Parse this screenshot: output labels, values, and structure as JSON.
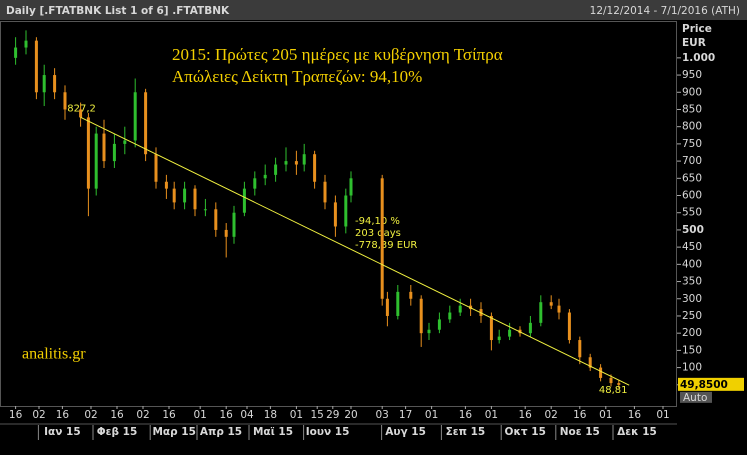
{
  "header": {
    "left": "Daily [.FTATBNK List 1 of 6] .FTATBNK",
    "right": "12/12/2014 - 7/1/2016 (ATH)"
  },
  "chart_data": {
    "type": "candlestick",
    "title": "2015: Πρώτες 205 ημέρες με κυβέρνηση Τσίπρα",
    "subtitle": "Απώλειες Δείκτη Τραπεζών: 94,10%",
    "watermark": "analitis.gr",
    "y_axis_title": "Price",
    "y_axis_unit": "EUR",
    "x": [
      4,
      8,
      12,
      15,
      19,
      23,
      29,
      32,
      35,
      38,
      42,
      46,
      50,
      54,
      58,
      62,
      65,
      69,
      73,
      77,
      81,
      85,
      88,
      92,
      96,
      100,
      104,
      108,
      112,
      115,
      119,
      123,
      127,
      131,
      133,
      145,
      147,
      151,
      156,
      160,
      163,
      167,
      171,
      175,
      179,
      183,
      187,
      190,
      194,
      198,
      202,
      206,
      210,
      213,
      217,
      221,
      225,
      229,
      233,
      236
    ],
    "open": [
      1000,
      1030,
      1050,
      900,
      950,
      900,
      850,
      827,
      620,
      780,
      700,
      750,
      760,
      900,
      720,
      640,
      620,
      580,
      620,
      560,
      560,
      500,
      480,
      550,
      620,
      650,
      660,
      690,
      700,
      690,
      720,
      640,
      580,
      510,
      600,
      650,
      300,
      250,
      320,
      300,
      200,
      210,
      240,
      260,
      280,
      270,
      250,
      180,
      190,
      210,
      200,
      230,
      290,
      280,
      260,
      180,
      130,
      100,
      70,
      55
    ],
    "high": [
      1060,
      1080,
      1060,
      980,
      970,
      920,
      870,
      840,
      800,
      820,
      780,
      800,
      940,
      910,
      740,
      660,
      640,
      640,
      630,
      590,
      580,
      520,
      570,
      640,
      670,
      690,
      710,
      740,
      730,
      750,
      730,
      660,
      600,
      620,
      670,
      660,
      320,
      340,
      340,
      310,
      230,
      260,
      280,
      300,
      300,
      290,
      260,
      210,
      230,
      220,
      250,
      310,
      310,
      300,
      270,
      190,
      140,
      110,
      80,
      65
    ],
    "low": [
      980,
      1010,
      880,
      860,
      880,
      820,
      800,
      540,
      600,
      680,
      680,
      720,
      740,
      700,
      620,
      590,
      560,
      560,
      540,
      540,
      480,
      420,
      460,
      540,
      600,
      630,
      640,
      670,
      660,
      670,
      620,
      560,
      480,
      490,
      580,
      280,
      220,
      240,
      280,
      160,
      180,
      200,
      230,
      250,
      250,
      230,
      150,
      170,
      180,
      190,
      190,
      220,
      270,
      240,
      170,
      110,
      90,
      60,
      45,
      40
    ],
    "close": [
      1030,
      1050,
      900,
      950,
      900,
      850,
      827,
      620,
      780,
      700,
      750,
      760,
      900,
      720,
      640,
      620,
      580,
      620,
      560,
      560,
      500,
      480,
      550,
      620,
      650,
      660,
      690,
      700,
      690,
      720,
      640,
      580,
      510,
      600,
      650,
      300,
      250,
      320,
      300,
      200,
      210,
      240,
      260,
      280,
      270,
      250,
      180,
      190,
      210,
      200,
      230,
      290,
      280,
      260,
      180,
      130,
      100,
      70,
      55,
      49.85
    ],
    "up_color": "#2fbf2f",
    "down_color": "#e8901e",
    "trendline": {
      "x": [
        29,
        240
      ],
      "values": [
        827.2,
        48.81
      ],
      "value_labels": [
        "827,2",
        "48,81"
      ],
      "color": "#f0f040"
    },
    "annotation": [
      "-94,10 %",
      "203 days",
      "-778,39 EUR"
    ],
    "last_price": {
      "value": 49.85,
      "label": "49,8500"
    },
    "scale_mode": "Auto",
    "xlim": [
      -2,
      258
    ],
    "ylim": [
      0,
      1110
    ],
    "yticks": [
      50,
      100,
      150,
      200,
      250,
      300,
      350,
      400,
      450,
      500,
      550,
      600,
      650,
      700,
      750,
      800,
      850,
      900,
      950,
      {
        "value": 1000,
        "label": "1.000"
      }
    ],
    "xticks": [
      {
        "value": 4,
        "label": "16"
      },
      {
        "value": 13,
        "label": "02"
      },
      {
        "value": 22,
        "label": "16"
      },
      {
        "value": 33,
        "label": "02"
      },
      {
        "value": 43,
        "label": "16"
      },
      {
        "value": 53,
        "label": "02"
      },
      {
        "value": 63,
        "label": "16"
      },
      {
        "value": 75,
        "label": "01"
      },
      {
        "value": 85,
        "label": "16"
      },
      {
        "value": 93,
        "label": "04"
      },
      {
        "value": 102,
        "label": "18"
      },
      {
        "value": 112,
        "label": "01"
      },
      {
        "value": 120,
        "label": "15"
      },
      {
        "value": 126,
        "label": "29"
      },
      {
        "value": 133,
        "label": "20"
      },
      {
        "value": 145,
        "label": "03"
      },
      {
        "value": 154,
        "label": "17"
      },
      {
        "value": 164,
        "label": "01"
      },
      {
        "value": 177,
        "label": "16"
      },
      {
        "value": 187,
        "label": "01"
      },
      {
        "value": 200,
        "label": "16"
      },
      {
        "value": 210,
        "label": "02"
      },
      {
        "value": 221,
        "label": "16"
      },
      {
        "value": 231,
        "label": "01"
      },
      {
        "value": 242,
        "label": "16"
      },
      {
        "value": 253,
        "label": "01"
      }
    ],
    "month_labels": [
      {
        "value": 22,
        "label": "Ιαν 15"
      },
      {
        "value": 43,
        "label": "Φεβ 15"
      },
      {
        "value": 65,
        "label": "Μαρ 15"
      },
      {
        "value": 83,
        "label": "Απρ 15"
      },
      {
        "value": 103,
        "label": "Μαϊ 15"
      },
      {
        "value": 124,
        "label": "Ιουν 15"
      },
      {
        "value": 154,
        "label": "Αυγ 15"
      },
      {
        "value": 177,
        "label": "Σεπ 15"
      },
      {
        "value": 200,
        "label": "Οκτ 15"
      },
      {
        "value": 221,
        "label": "Νοε 15"
      },
      {
        "value": 243,
        "label": "Δεκ 15"
      }
    ],
    "grid": false
  }
}
